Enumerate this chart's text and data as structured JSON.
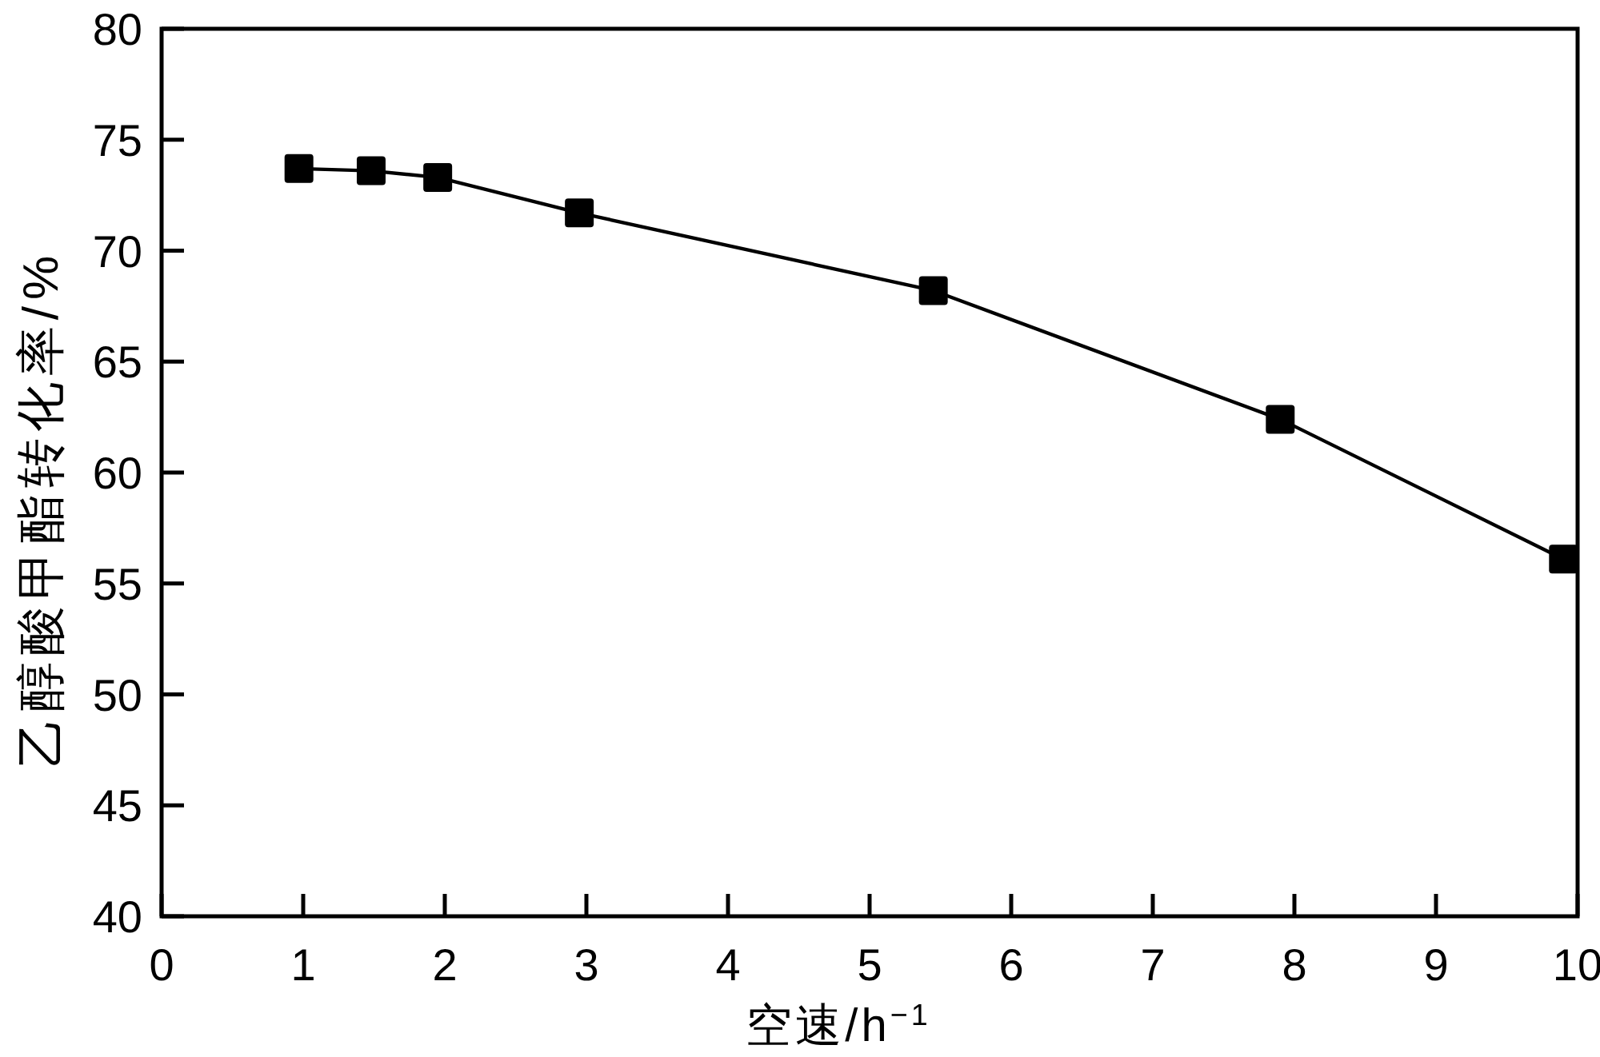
{
  "chart_data": {
    "type": "line",
    "xlabel": "空速/h$^{−1}$",
    "ylabel": "乙醇酸甲酯转化率/%",
    "x": [
      0.97,
      1.48,
      1.95,
      2.95,
      5.45,
      7.9,
      9.9
    ],
    "series": [
      {
        "color": "#000000",
        "values": [
          73.7,
          73.6,
          73.3,
          71.7,
          68.2,
          62.4,
          56.1
        ]
      }
    ],
    "xlim": [
      0,
      10
    ],
    "ylim": [
      40,
      80
    ],
    "xticks": [
      0,
      1,
      2,
      3,
      4,
      5,
      6,
      7,
      8,
      9,
      10
    ],
    "yticks": [
      40,
      45,
      50,
      55,
      60,
      65,
      70,
      75,
      80
    ],
    "marker": "square",
    "line_style": "solid"
  }
}
